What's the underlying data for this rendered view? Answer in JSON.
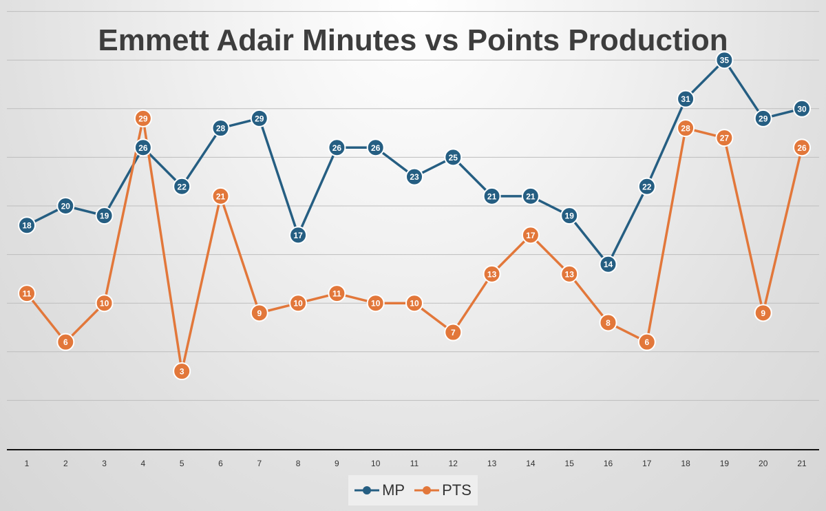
{
  "chart_data": {
    "type": "line",
    "title": "Emmett Adair Minutes vs Points Production",
    "xlabel": "",
    "ylabel": "",
    "categories": [
      "1",
      "2",
      "3",
      "4",
      "5",
      "6",
      "7",
      "8",
      "9",
      "10",
      "11",
      "12",
      "13",
      "14",
      "15",
      "16",
      "17",
      "18",
      "19",
      "20",
      "21"
    ],
    "ylim": [
      -5,
      40
    ],
    "y_gridlines": [
      0,
      5,
      10,
      15,
      20,
      25,
      30,
      35,
      40
    ],
    "grid": true,
    "legend": "bottom",
    "series": [
      {
        "name": "MP",
        "color": "#255e82",
        "values": [
          18,
          20,
          19,
          26,
          22,
          28,
          29,
          17,
          26,
          26,
          23,
          25,
          21,
          21,
          19,
          14,
          22,
          31,
          35,
          29,
          30
        ]
      },
      {
        "name": "PTS",
        "color": "#e2773a",
        "values": [
          11,
          6,
          10,
          29,
          3,
          21,
          9,
          10,
          11,
          10,
          10,
          7,
          13,
          17,
          13,
          8,
          6,
          28,
          27,
          9,
          26
        ]
      }
    ]
  }
}
